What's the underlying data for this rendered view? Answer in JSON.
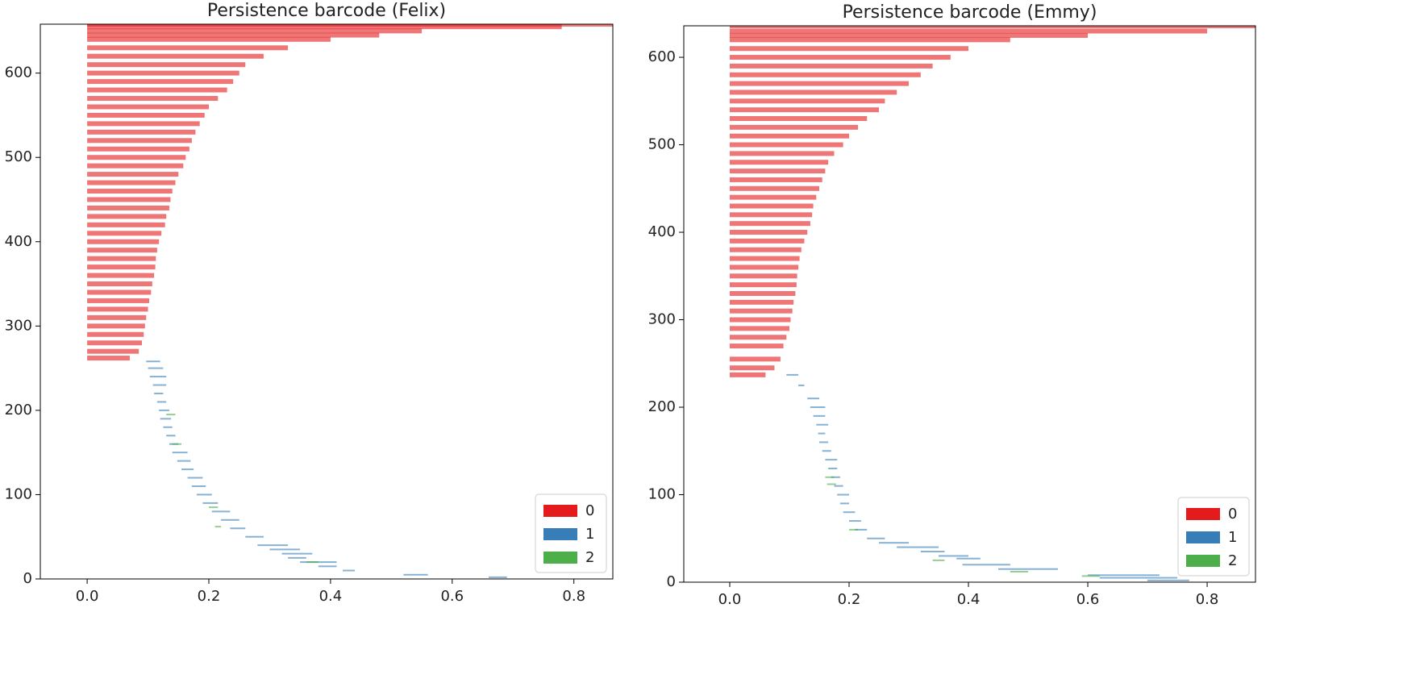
{
  "chart_data": [
    {
      "type": "barcode",
      "title": "Persistence barcode (Felix)",
      "xlim": [
        -0.077,
        0.864
      ],
      "ylim": [
        0,
        658
      ],
      "xticks": [
        {
          "value": 0,
          "label": "0.0"
        },
        0.2,
        0.4,
        0.6,
        0.8
      ],
      "yticks": [
        0,
        100,
        200,
        300,
        400,
        500,
        600
      ],
      "legend": "lower right",
      "series": [
        {
          "name": "0",
          "color": "#e41a1c",
          "y": [
            262,
            270,
            280,
            290,
            300,
            310,
            320,
            330,
            340,
            350,
            360,
            370,
            380,
            390,
            400,
            410,
            420,
            430,
            440,
            450,
            460,
            470,
            480,
            490,
            500,
            510,
            520,
            530,
            540,
            550,
            560,
            570,
            580,
            590,
            600,
            610,
            620,
            630,
            640,
            645,
            650,
            655,
            658
          ],
          "birth": [
            0,
            0,
            0,
            0,
            0,
            0,
            0,
            0,
            0,
            0,
            0,
            0,
            0,
            0,
            0,
            0,
            0,
            0,
            0,
            0,
            0,
            0,
            0,
            0,
            0,
            0,
            0,
            0,
            0,
            0,
            0,
            0,
            0,
            0,
            0,
            0,
            0,
            0,
            0,
            0,
            0,
            0,
            0
          ],
          "death": [
            0.07,
            0.085,
            0.09,
            0.093,
            0.095,
            0.097,
            0.1,
            0.102,
            0.105,
            0.107,
            0.11,
            0.112,
            0.113,
            0.115,
            0.118,
            0.122,
            0.128,
            0.13,
            0.135,
            0.137,
            0.14,
            0.145,
            0.15,
            0.158,
            0.162,
            0.168,
            0.172,
            0.178,
            0.185,
            0.193,
            0.2,
            0.215,
            0.23,
            0.24,
            0.25,
            0.26,
            0.29,
            0.33,
            0.4,
            0.48,
            0.55,
            0.78,
            0.864
          ]
        },
        {
          "name": "1",
          "color": "#377eb8",
          "y": [
            258,
            250,
            240,
            230,
            220,
            210,
            200,
            190,
            180,
            170,
            160,
            150,
            140,
            130,
            120,
            110,
            100,
            90,
            80,
            70,
            60,
            50,
            40,
            35,
            30,
            25,
            20,
            15,
            10,
            5,
            2
          ],
          "birth": [
            0.097,
            0.1,
            0.103,
            0.108,
            0.11,
            0.115,
            0.118,
            0.12,
            0.125,
            0.13,
            0.135,
            0.14,
            0.148,
            0.155,
            0.165,
            0.172,
            0.18,
            0.19,
            0.205,
            0.22,
            0.235,
            0.26,
            0.28,
            0.3,
            0.32,
            0.33,
            0.35,
            0.38,
            0.42,
            0.52,
            0.66
          ],
          "death": [
            0.12,
            0.125,
            0.13,
            0.13,
            0.125,
            0.13,
            0.135,
            0.138,
            0.14,
            0.145,
            0.15,
            0.165,
            0.17,
            0.175,
            0.19,
            0.195,
            0.205,
            0.215,
            0.235,
            0.25,
            0.26,
            0.29,
            0.33,
            0.35,
            0.37,
            0.36,
            0.41,
            0.41,
            0.44,
            0.56,
            0.69
          ]
        },
        {
          "name": "2",
          "color": "#4daf4a",
          "y": [
            195,
            160,
            85,
            62,
            20
          ],
          "birth": [
            0.13,
            0.14,
            0.2,
            0.21,
            0.36
          ],
          "death": [
            0.145,
            0.155,
            0.215,
            0.22,
            0.38
          ]
        }
      ]
    },
    {
      "type": "barcode",
      "title": "Persistence barcode (Emmy)",
      "xlim": [
        -0.077,
        0.881
      ],
      "ylim": [
        0,
        636
      ],
      "xticks": [
        {
          "value": 0,
          "label": "0.0"
        },
        0.2,
        0.4,
        0.6,
        0.8
      ],
      "yticks": [
        0,
        100,
        200,
        300,
        400,
        500,
        600
      ],
      "legend": "lower right",
      "series": [
        {
          "name": "0",
          "color": "#e41a1c",
          "y": [
            237,
            245,
            255,
            270,
            280,
            290,
            300,
            310,
            320,
            330,
            340,
            350,
            360,
            370,
            380,
            390,
            400,
            410,
            420,
            430,
            440,
            450,
            460,
            470,
            480,
            490,
            500,
            510,
            520,
            530,
            540,
            550,
            560,
            570,
            580,
            590,
            600,
            610,
            620,
            625,
            630,
            636
          ],
          "birth": [
            0,
            0,
            0,
            0,
            0,
            0,
            0,
            0,
            0,
            0,
            0,
            0,
            0,
            0,
            0,
            0,
            0,
            0,
            0,
            0,
            0,
            0,
            0,
            0,
            0,
            0,
            0,
            0,
            0,
            0,
            0,
            0,
            0,
            0,
            0,
            0,
            0,
            0,
            0,
            0,
            0,
            0
          ],
          "death": [
            0.06,
            0.075,
            0.085,
            0.09,
            0.095,
            0.1,
            0.102,
            0.105,
            0.107,
            0.11,
            0.112,
            0.113,
            0.115,
            0.117,
            0.12,
            0.125,
            0.13,
            0.135,
            0.138,
            0.14,
            0.145,
            0.15,
            0.155,
            0.16,
            0.165,
            0.175,
            0.19,
            0.2,
            0.215,
            0.23,
            0.25,
            0.26,
            0.28,
            0.3,
            0.32,
            0.34,
            0.37,
            0.4,
            0.47,
            0.6,
            0.8,
            0.881
          ]
        },
        {
          "name": "1",
          "color": "#377eb8",
          "y": [
            237,
            225,
            210,
            200,
            190,
            180,
            170,
            160,
            150,
            140,
            130,
            120,
            110,
            100,
            90,
            80,
            70,
            60,
            50,
            45,
            40,
            35,
            30,
            27,
            20,
            15,
            8,
            5,
            2
          ],
          "birth": [
            0.095,
            0.115,
            0.13,
            0.135,
            0.14,
            0.145,
            0.148,
            0.15,
            0.155,
            0.16,
            0.165,
            0.17,
            0.175,
            0.18,
            0.185,
            0.19,
            0.2,
            0.21,
            0.23,
            0.25,
            0.28,
            0.32,
            0.35,
            0.38,
            0.39,
            0.45,
            0.6,
            0.62,
            0.7
          ],
          "death": [
            0.115,
            0.125,
            0.15,
            0.16,
            0.16,
            0.165,
            0.16,
            0.165,
            0.17,
            0.18,
            0.18,
            0.185,
            0.19,
            0.2,
            0.2,
            0.21,
            0.22,
            0.23,
            0.26,
            0.3,
            0.35,
            0.36,
            0.4,
            0.42,
            0.47,
            0.55,
            0.72,
            0.75,
            0.77
          ]
        },
        {
          "name": "2",
          "color": "#4daf4a",
          "y": [
            120,
            112,
            60,
            25,
            12,
            7
          ],
          "birth": [
            0.16,
            0.163,
            0.2,
            0.34,
            0.47,
            0.59
          ],
          "death": [
            0.175,
            0.178,
            0.215,
            0.36,
            0.5,
            0.62
          ]
        }
      ]
    }
  ]
}
